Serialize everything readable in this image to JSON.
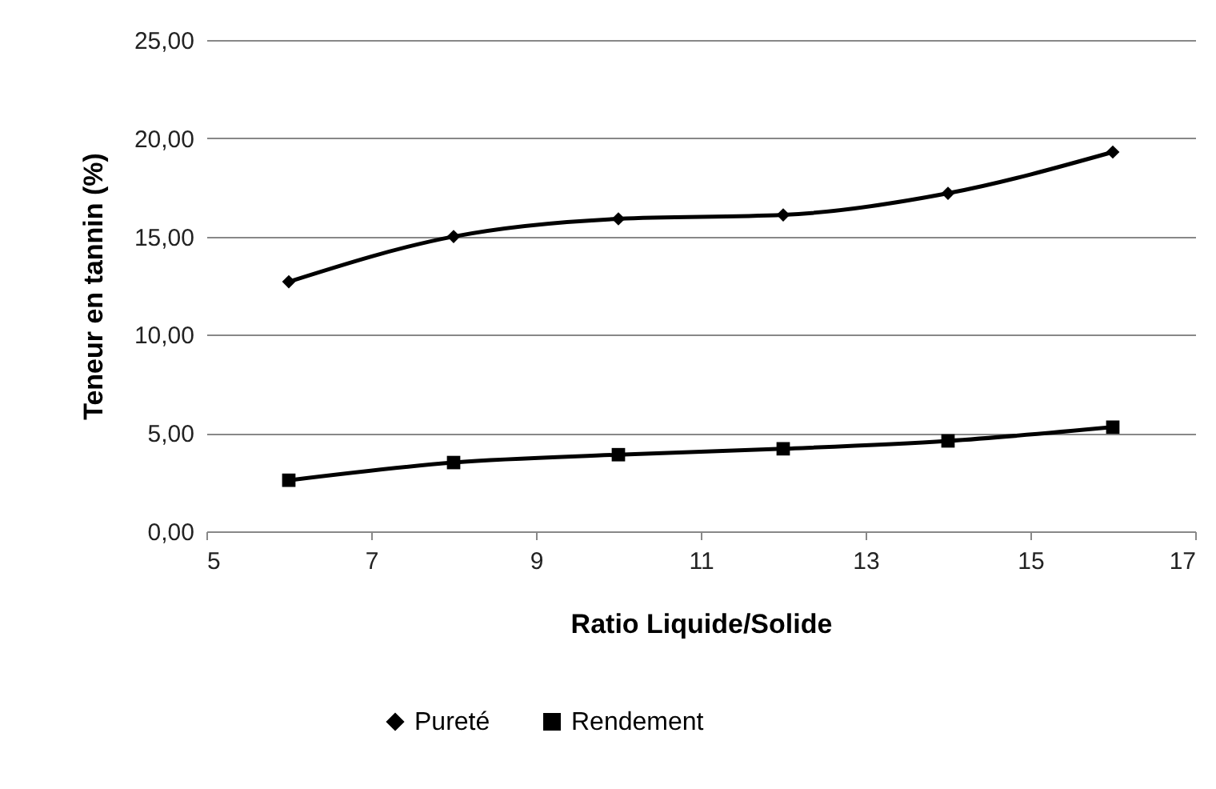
{
  "chart_data": {
    "type": "line",
    "xlabel": "Ratio Liquide/Solide",
    "ylabel": "Teneur en tannin (%)",
    "x": [
      6,
      8,
      10,
      12,
      14,
      16
    ],
    "series": [
      {
        "name": "Pureté",
        "color": "#000000",
        "marker": "diamond",
        "values": [
          12.7,
          15.0,
          15.9,
          16.1,
          17.2,
          19.3
        ]
      },
      {
        "name": "Rendement",
        "color": "#000000",
        "marker": "square",
        "values": [
          2.6,
          3.5,
          3.9,
          4.2,
          4.6,
          5.3
        ]
      }
    ],
    "xlim": [
      5,
      17
    ],
    "xticks": [
      5,
      7,
      9,
      11,
      13,
      15,
      17
    ],
    "ylim": [
      0,
      25
    ],
    "yticks": [
      {
        "value": 0,
        "label": "0,00"
      },
      {
        "value": 5,
        "label": "5,00"
      },
      {
        "value": 10,
        "label": "10,00"
      },
      {
        "value": 15,
        "label": "15,00"
      },
      {
        "value": 20,
        "label": "20,00"
      },
      {
        "value": 25,
        "label": "25,00"
      }
    ],
    "grid": "y",
    "legend": "bottom",
    "line_style": "solid"
  }
}
